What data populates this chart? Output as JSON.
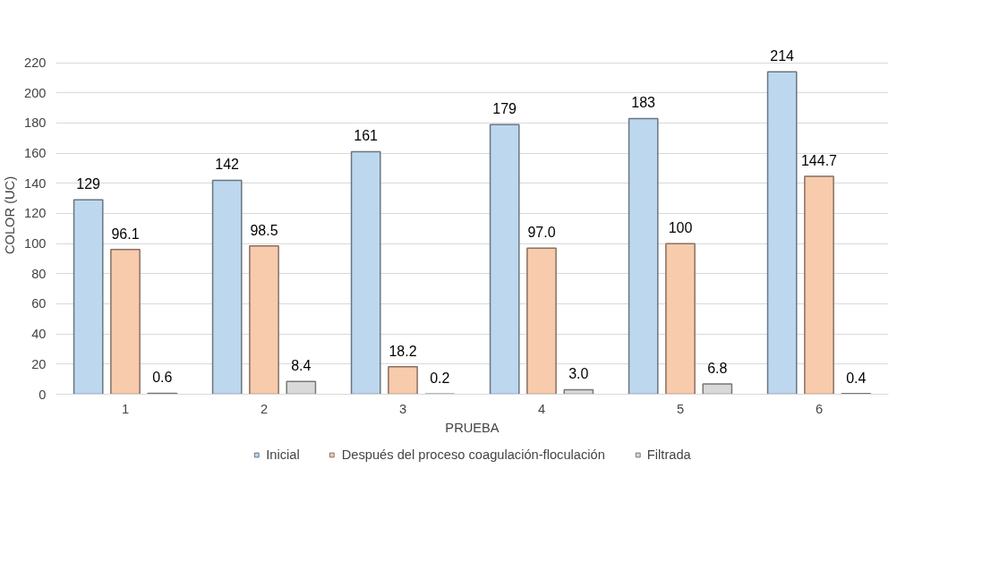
{
  "chart_data": {
    "type": "bar",
    "xlabel": "PRUEBA",
    "ylabel": "COLOR (UC)",
    "categories": [
      "1",
      "2",
      "3",
      "4",
      "5",
      "6"
    ],
    "series": [
      {
        "name": "Inicial",
        "color": "#bdd7ee",
        "values": [
          129,
          142,
          161,
          179,
          183,
          214
        ],
        "value_labels": [
          "129",
          "142",
          "161",
          "179",
          "183",
          "214"
        ]
      },
      {
        "name": "Después del proceso coagulación-floculación",
        "color": "#f8cbad",
        "values": [
          96.1,
          98.5,
          18.2,
          97.0,
          100,
          144.7
        ],
        "value_labels": [
          "96.1",
          "98.5",
          "18.2",
          "97.0",
          "100",
          "144.7"
        ]
      },
      {
        "name": "Filtrada",
        "color": "#d9d9d9",
        "values": [
          0.6,
          8.4,
          0.2,
          3.0,
          6.8,
          0.4
        ],
        "value_labels": [
          "0.6",
          "8.4",
          "0.2",
          "3.0",
          "6.8",
          "0.4"
        ]
      }
    ],
    "ylim": [
      0,
      220
    ],
    "yticks": [
      0,
      20,
      40,
      60,
      80,
      100,
      120,
      140,
      160,
      180,
      200,
      220
    ],
    "grid": "y",
    "legend": "bottom"
  }
}
